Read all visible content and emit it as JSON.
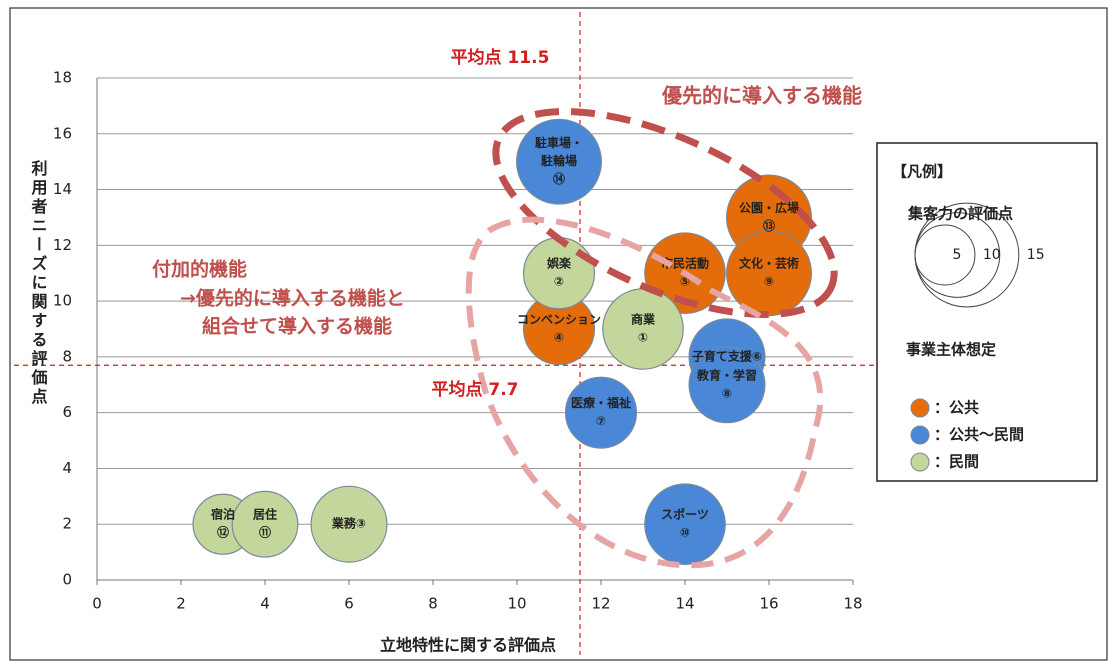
{
  "chart_data": {
    "type": "bubble",
    "xlabel": "立地特性に関する評価点",
    "ylabel": "利用者ニーズに関する評価点",
    "xlim": [
      0,
      18
    ],
    "xticks": [
      0,
      2,
      4,
      6,
      8,
      10,
      12,
      14,
      16,
      18
    ],
    "ylim": [
      0,
      18
    ],
    "yticks": [
      0,
      2,
      4,
      6,
      8,
      10,
      12,
      14,
      16,
      18
    ],
    "grid": true,
    "series": [
      {
        "name": "：公共",
        "color": "#e46c0a",
        "x": [
          16,
          14,
          16,
          11
        ],
        "y": [
          13,
          11,
          11,
          9
        ],
        "size": [
          10,
          9,
          10,
          7
        ],
        "labels": [
          [
            "公園・広場",
            "⑬"
          ],
          [
            "市民活動",
            "⑤"
          ],
          [
            "文化・芸術",
            "⑨"
          ],
          [
            "コンベンション",
            "④"
          ]
        ]
      },
      {
        "name": "：公共～民間",
        "color": "#4a87d6",
        "x": [
          11,
          15,
          15,
          12,
          14
        ],
        "y": [
          15,
          8,
          7,
          6,
          2
        ],
        "size": [
          10,
          8,
          8,
          7,
          9
        ],
        "labels": [
          [
            "駐車場・",
            "駐輪場",
            "⑭"
          ],
          [
            "子育て支援⑥"
          ],
          [
            "教育・学習",
            "⑧"
          ],
          [
            "医療・福祉",
            "⑦"
          ],
          [
            "スポーツ",
            "⑩"
          ]
        ]
      },
      {
        "name": "：民間",
        "color": "#c3d69b",
        "x": [
          11,
          13,
          3,
          4,
          6
        ],
        "y": [
          11,
          9,
          2,
          2,
          2
        ],
        "size": [
          7,
          9,
          5,
          6,
          8
        ],
        "labels": [
          [
            "娯楽",
            "②"
          ],
          [
            "商業",
            "①"
          ],
          [
            "宿泊",
            "⑫"
          ],
          [
            "居住",
            "⑪"
          ],
          [
            "業務③"
          ]
        ]
      }
    ],
    "averages": {
      "x": 11.5,
      "x_label": "平均点 11.5",
      "y": 7.7,
      "y_label": "平均点 7.7"
    },
    "annotations": [
      "優先的に導入する機能",
      "付加的機能",
      "→優先的に導入する機能と",
      "組合せて導入する機能"
    ],
    "legend": {
      "title": "【凡例】",
      "size_title": "集客力の評価点",
      "size_values": [
        5,
        10,
        15
      ],
      "type_title": "事業主体想定"
    }
  }
}
